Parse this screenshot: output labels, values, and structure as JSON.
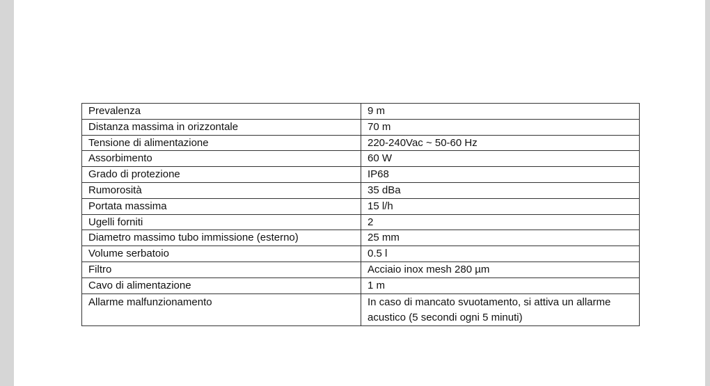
{
  "specs": [
    {
      "label": "Prevalenza",
      "value": "9 m"
    },
    {
      "label": "Distanza massima in orizzontale",
      "value": "70 m"
    },
    {
      "label": "Tensione di alimentazione",
      "value": "220-240Vac ~ 50-60 Hz"
    },
    {
      "label": "Assorbimento",
      "value": "60 W"
    },
    {
      "label": "Grado di protezione",
      "value": "IP68"
    },
    {
      "label": "Rumorosità",
      "value": "35 dBa"
    },
    {
      "label": "Portata massima",
      "value": "15 l/h"
    },
    {
      "label": "Ugelli forniti",
      "value": "2"
    },
    {
      "label": "Diametro massimo tubo immissione (esterno)",
      "value": "25 mm"
    },
    {
      "label": "Volume serbatoio",
      "value": "0.5 l"
    },
    {
      "label": "Filtro",
      "value": "Acciaio inox mesh 280 µm"
    },
    {
      "label": "Cavo di alimentazione",
      "value": "1 m"
    },
    {
      "label": "Allarme malfunzionamento",
      "value": "In caso di mancato svuotamento, si attiva un allarme acustico (5 secondi ogni 5 minuti)"
    }
  ]
}
